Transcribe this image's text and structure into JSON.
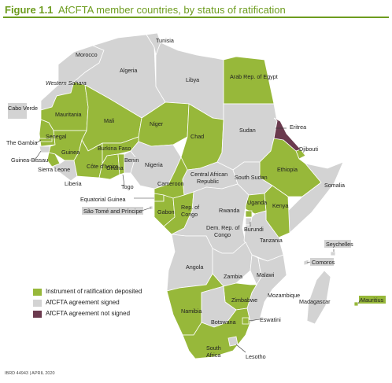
{
  "figure": {
    "number": "Figure 1.1",
    "title": "AfCFTA member countries, by status of ratification"
  },
  "colors": {
    "ratified": "#97b83a",
    "signed": "#d3d3d3",
    "not_signed": "#6b3a4e",
    "border": "#ffffff",
    "title": "#6d9c1e"
  },
  "legend": [
    {
      "label": "Instrument of ratification deposited",
      "status": "ratified"
    },
    {
      "label": "AfCFTA agreement signed",
      "status": "signed"
    },
    {
      "label": "AfCFTA agreement not signed",
      "status": "not_signed"
    }
  ],
  "countries": {
    "morocco": {
      "name": "Morocco",
      "status": "signed"
    },
    "tunisia": {
      "name": "Tunisia",
      "status": "signed"
    },
    "algeria": {
      "name": "Algeria",
      "status": "signed"
    },
    "libya": {
      "name": "Libya",
      "status": "signed"
    },
    "egypt": {
      "name": "Arab Rep. of Egypt",
      "status": "ratified"
    },
    "western_sahara": {
      "name": "Western Sahara",
      "status": "signed"
    },
    "mauritania": {
      "name": "Mauritania",
      "status": "ratified"
    },
    "mali": {
      "name": "Mali",
      "status": "ratified"
    },
    "niger": {
      "name": "Niger",
      "status": "ratified"
    },
    "chad": {
      "name": "Chad",
      "status": "ratified"
    },
    "sudan": {
      "name": "Sudan",
      "status": "signed"
    },
    "eritrea": {
      "name": "Eritrea",
      "status": "not_signed"
    },
    "djibouti": {
      "name": "Djibouti",
      "status": "ratified"
    },
    "ethiopia": {
      "name": "Ethiopia",
      "status": "ratified"
    },
    "somalia": {
      "name": "Somalia",
      "status": "signed"
    },
    "senegal": {
      "name": "Senegal",
      "status": "ratified"
    },
    "gambia": {
      "name": "The Gambia",
      "status": "ratified"
    },
    "guinea_bissau": {
      "name": "Guinea-Bissau",
      "status": "signed"
    },
    "guinea": {
      "name": "Guinea",
      "status": "ratified"
    },
    "sierra_leone": {
      "name": "Sierra Leone",
      "status": "ratified"
    },
    "liberia": {
      "name": "Liberia",
      "status": "signed"
    },
    "cote_divoire": {
      "name": "Côte d'Ivoire",
      "status": "ratified"
    },
    "burkina_faso": {
      "name": "Burkina Faso",
      "status": "ratified"
    },
    "ghana": {
      "name": "Ghana",
      "status": "ratified"
    },
    "togo": {
      "name": "Togo",
      "status": "ratified"
    },
    "benin": {
      "name": "Benin",
      "status": "signed"
    },
    "nigeria": {
      "name": "Nigeria",
      "status": "signed"
    },
    "cameroon": {
      "name": "Cameroon",
      "status": "ratified"
    },
    "car": {
      "name": "Central African Republic",
      "status": "signed"
    },
    "south_sudan": {
      "name": "South Sudan",
      "status": "signed"
    },
    "equatorial_guinea": {
      "name": "Equatorial Guinea",
      "status": "ratified"
    },
    "gabon": {
      "name": "Gabon",
      "status": "ratified"
    },
    "congo": {
      "name": "Rep. of Congo",
      "status": "ratified"
    },
    "drc": {
      "name": "Dem. Rep. of Congo",
      "status": "signed"
    },
    "uganda": {
      "name": "Uganda",
      "status": "ratified"
    },
    "kenya": {
      "name": "Kenya",
      "status": "ratified"
    },
    "rwanda": {
      "name": "Rwanda",
      "status": "ratified"
    },
    "burundi": {
      "name": "Burundi",
      "status": "signed"
    },
    "tanzania": {
      "name": "Tanzania",
      "status": "signed"
    },
    "angola": {
      "name": "Angola",
      "status": "signed"
    },
    "zambia": {
      "name": "Zambia",
      "status": "signed"
    },
    "malawi": {
      "name": "Malawi",
      "status": "signed"
    },
    "mozambique": {
      "name": "Mozambique",
      "status": "signed"
    },
    "zimbabwe": {
      "name": "Zimbabwe",
      "status": "ratified"
    },
    "namibia": {
      "name": "Namibia",
      "status": "ratified"
    },
    "botswana": {
      "name": "Botswana",
      "status": "signed"
    },
    "south_africa": {
      "name": "South Africa",
      "status": "ratified"
    },
    "eswatini": {
      "name": "Eswatini",
      "status": "ratified"
    },
    "lesotho": {
      "name": "Lesotho",
      "status": "signed"
    },
    "madagascar": {
      "name": "Madagascar",
      "status": "signed"
    },
    "comoros": {
      "name": "Comoros",
      "status": "signed"
    },
    "seychelles": {
      "name": "Seychelles",
      "status": "signed"
    },
    "mauritius": {
      "name": "Mauritius",
      "status": "ratified"
    },
    "cabo_verde": {
      "name": "Cabo Verde",
      "status": "signed"
    },
    "sao_tome": {
      "name": "São Tomé and Príncipe",
      "status": "signed"
    }
  },
  "footer": "IBRD 44943 | APRIL 2020"
}
